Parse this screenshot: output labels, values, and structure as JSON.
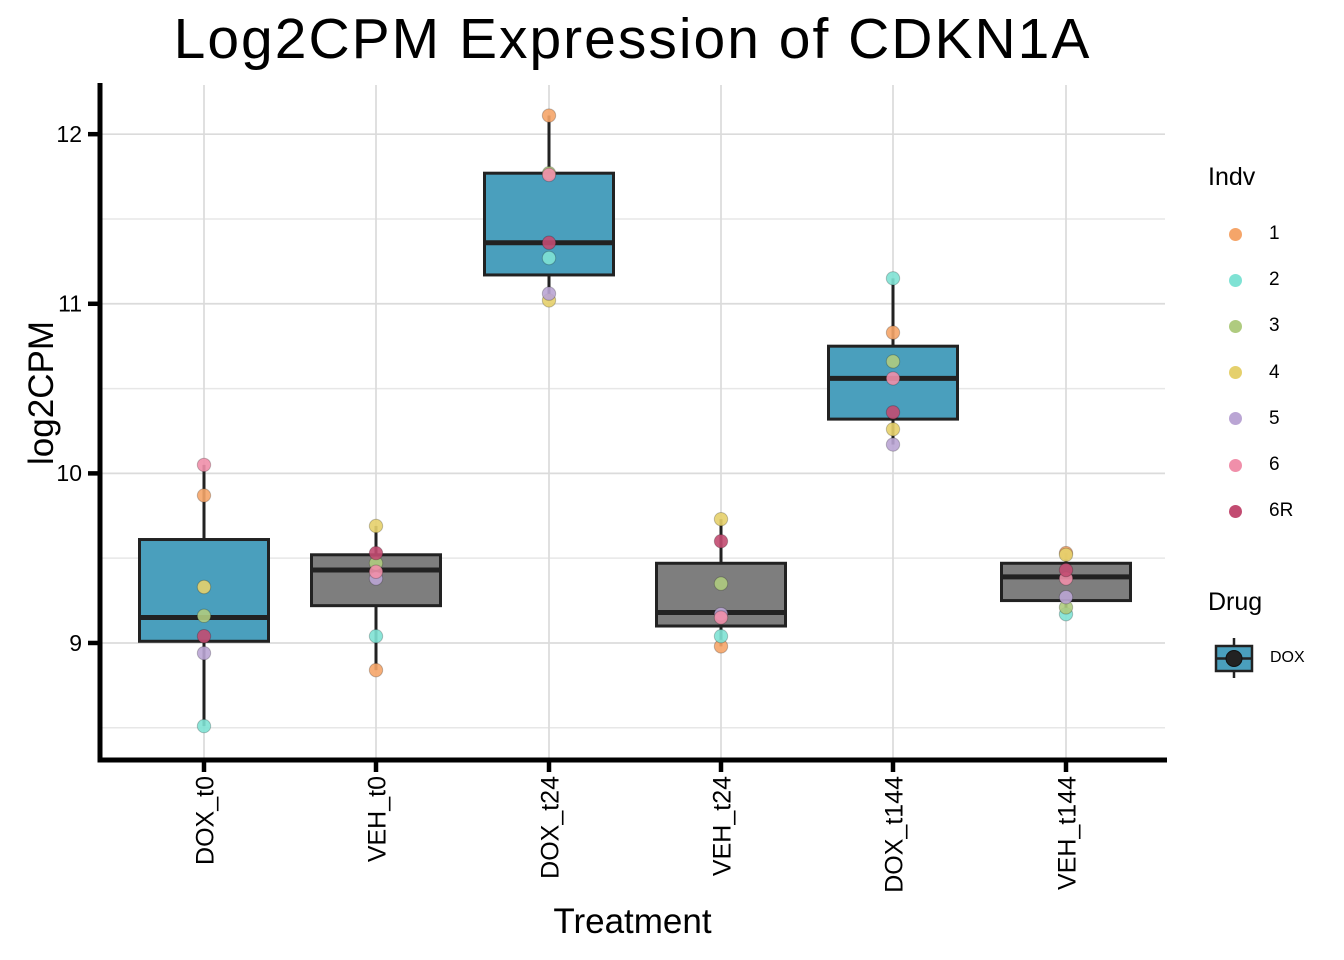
{
  "title": "Log2CPM Expression of CDKN1A",
  "axes": {
    "x_title": "Treatment",
    "y_title": "log2CPM"
  },
  "legend": {
    "indv": {
      "title": "Indv",
      "items": [
        {
          "label": "1"
        },
        {
          "label": "2"
        },
        {
          "label": "3"
        },
        {
          "label": "4"
        },
        {
          "label": "5"
        },
        {
          "label": "6"
        },
        {
          "label": "6R"
        }
      ]
    },
    "drug": {
      "title": "Drug",
      "items": [
        {
          "label": "DOX"
        }
      ]
    }
  },
  "colors": {
    "dox_fill": "#4A9FBD",
    "veh_fill": "#7E7E7E",
    "box_border": "#222222",
    "grid_major": "#DBDBDB",
    "grid_minor": "#E7E7E7",
    "axis": "#000000",
    "indv": {
      "1": "#F5A569",
      "2": "#7FE2D4",
      "3": "#AFCB7F",
      "4": "#E5D06C",
      "5": "#BAA5D4",
      "6": "#F08FAA",
      "6R": "#C24B71"
    }
  },
  "chart_data": {
    "type": "boxplot",
    "title": "Log2CPM Expression of CDKN1A",
    "xlabel": "Treatment",
    "ylabel": "log2CPM",
    "legend_position": "right",
    "grid": true,
    "categories": [
      "DOX_t0",
      "VEH_t0",
      "DOX_t24",
      "VEH_t24",
      "DOX_t144",
      "VEH_t144"
    ],
    "y_ticks": [
      9,
      10,
      11,
      12
    ],
    "y_minor_ticks": [
      8.5,
      9.5,
      10.5,
      11.5
    ],
    "y_range": [
      8.31,
      12.29
    ],
    "boxes": [
      {
        "category": "DOX_t0",
        "drug": "DOX",
        "whisker_low": 8.51,
        "q1": 9.01,
        "median": 9.15,
        "q3": 9.61,
        "whisker_high": 10.05
      },
      {
        "category": "VEH_t0",
        "drug": "VEH",
        "whisker_low": 8.84,
        "q1": 9.22,
        "median": 9.43,
        "q3": 9.52,
        "whisker_high": 9.69
      },
      {
        "category": "DOX_t24",
        "drug": "DOX",
        "whisker_low": 11.02,
        "q1": 11.17,
        "median": 11.36,
        "q3": 11.77,
        "whisker_high": 12.11
      },
      {
        "category": "VEH_t24",
        "drug": "VEH",
        "whisker_low": 8.98,
        "q1": 9.1,
        "median": 9.18,
        "q3": 9.47,
        "whisker_high": 9.73
      },
      {
        "category": "DOX_t144",
        "drug": "DOX",
        "whisker_low": 10.17,
        "q1": 10.32,
        "median": 10.56,
        "q3": 10.75,
        "whisker_high": 11.15
      },
      {
        "category": "VEH_t144",
        "drug": "VEH",
        "whisker_low": 9.17,
        "q1": 9.25,
        "median": 9.39,
        "q3": 9.47,
        "whisker_high": 9.53
      }
    ],
    "indv_order": [
      "1",
      "2",
      "3",
      "4",
      "5",
      "6",
      "6R"
    ],
    "points": {
      "DOX_t0": [
        9.87,
        8.51,
        9.16,
        9.33,
        8.94,
        10.05,
        9.04
      ],
      "VEH_t0": [
        8.84,
        9.04,
        9.47,
        9.69,
        9.38,
        9.42,
        9.53
      ],
      "DOX_t24": [
        12.11,
        11.27,
        11.77,
        11.02,
        11.06,
        11.76,
        11.36
      ],
      "VEH_t24": [
        8.98,
        9.04,
        9.35,
        9.73,
        9.17,
        9.15,
        9.6
      ],
      "DOX_t144": [
        10.83,
        11.15,
        10.66,
        10.26,
        10.17,
        10.56,
        10.36
      ],
      "VEH_t144": [
        9.53,
        9.17,
        9.21,
        9.52,
        9.27,
        9.38,
        9.43
      ]
    }
  }
}
